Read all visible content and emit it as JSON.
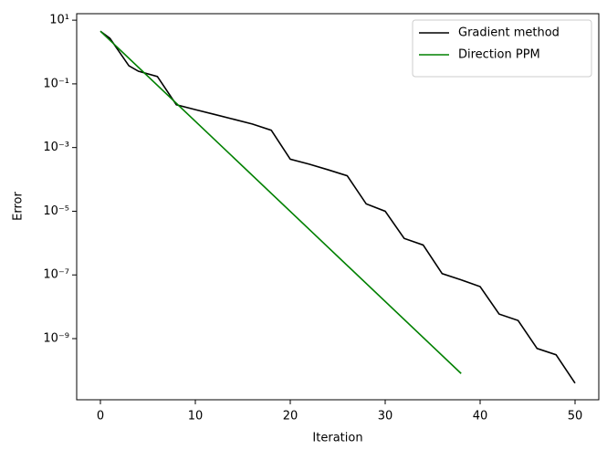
{
  "chart_data": {
    "type": "line",
    "xlabel": "Iteration",
    "ylabel": "Error",
    "xlim": [
      -2.5,
      52.5
    ],
    "xticks": [
      0,
      10,
      20,
      30,
      40,
      50
    ],
    "ylim": [
      16,
      1.2e-11
    ],
    "yscale": "log",
    "yticks": [
      {
        "value": 10,
        "label": "10¹"
      },
      {
        "value": 0.1,
        "label": "10⁻¹"
      },
      {
        "value": 0.001,
        "label": "10⁻³"
      },
      {
        "value": 1e-05,
        "label": "10⁻⁵"
      },
      {
        "value": 1e-07,
        "label": "10⁻⁷"
      },
      {
        "value": 1e-09,
        "label": "10⁻⁹"
      }
    ],
    "legend": "upper right",
    "series": [
      {
        "name": "Gradient method",
        "color": "#000000",
        "x": [
          0,
          1,
          3,
          4,
          6,
          8,
          10,
          12,
          14,
          16,
          18,
          20,
          22,
          24,
          26,
          28,
          30,
          32,
          34,
          36,
          38,
          40,
          42,
          44,
          46,
          48,
          50
        ],
        "values": [
          4.5,
          2.7,
          0.37,
          0.25,
          0.17,
          0.022,
          0.0155,
          0.011,
          0.0078,
          0.0055,
          0.0035,
          0.00043,
          0.0003,
          0.0002,
          0.00013,
          1.7e-05,
          1e-05,
          1.4e-06,
          8.7e-07,
          1.1e-07,
          7e-08,
          4.3e-08,
          5.9e-09,
          3.7e-09,
          4.9e-10,
          3.1e-10,
          4e-11
        ]
      },
      {
        "name": "Direction PPM",
        "color": "#008000",
        "x": [
          0,
          38
        ],
        "values": [
          4.5,
          8e-11
        ]
      }
    ]
  }
}
